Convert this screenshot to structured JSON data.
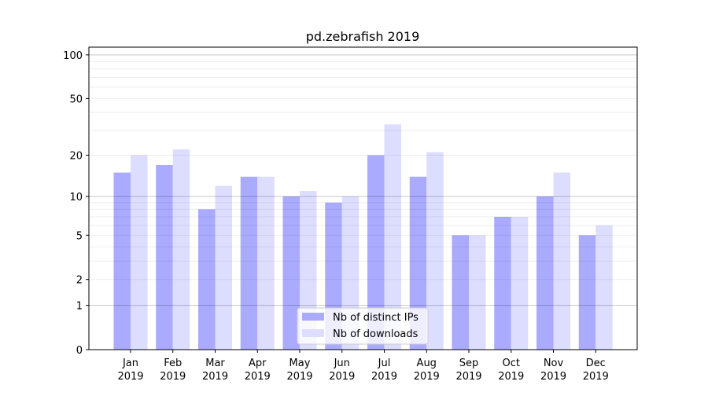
{
  "chart_data": {
    "type": "bar",
    "title": "pd.zebrafish 2019",
    "xlabel": "",
    "ylabel": "",
    "yscale": "log10(1+y)",
    "ylim": [
      0,
      113
    ],
    "yticks": [
      0,
      1,
      2,
      5,
      10,
      20,
      50,
      100
    ],
    "grid": true,
    "legend_position": "bottom-center",
    "categories": [
      "Jan\n2019",
      "Feb\n2019",
      "Mar\n2019",
      "Apr\n2019",
      "May\n2019",
      "Jun\n2019",
      "Jul\n2019",
      "Aug\n2019",
      "Sep\n2019",
      "Oct\n2019",
      "Nov\n2019",
      "Dec\n2019"
    ],
    "series": [
      {
        "name": "Nb of distinct IPs",
        "color": "#aaaaff",
        "values": [
          15,
          17,
          8,
          14,
          10,
          9,
          20,
          14,
          5,
          7,
          10,
          5
        ]
      },
      {
        "name": "Nb of downloads",
        "color": "#ddddff",
        "values": [
          20,
          22,
          12,
          14,
          11,
          10,
          33,
          21,
          5,
          7,
          15,
          6
        ]
      }
    ]
  }
}
